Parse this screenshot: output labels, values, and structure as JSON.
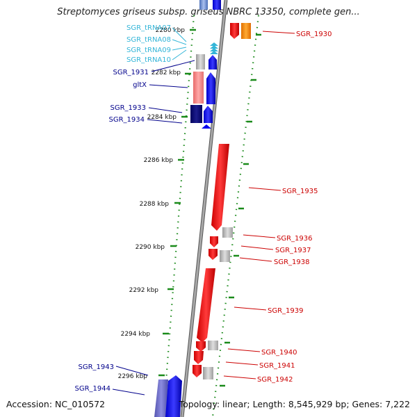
{
  "title": "Streptomyces griseus subsp. griseus NBRC 13350, complete gen...",
  "footer": {
    "accession": "Accession: NC_010572",
    "topology": "Topology: linear; Length: 8,545,929 bp; Genes: 7,222"
  },
  "ruler_ticks": [
    {
      "label": "2280 kbp",
      "kbp": 2280
    },
    {
      "label": "2282 kbp",
      "kbp": 2282
    },
    {
      "label": "2284 kbp",
      "kbp": 2284
    },
    {
      "label": "2286 kbp",
      "kbp": 2286
    },
    {
      "label": "2288 kbp",
      "kbp": 2288
    },
    {
      "label": "2290 kbp",
      "kbp": 2290
    },
    {
      "label": "2292 kbp",
      "kbp": 2292
    },
    {
      "label": "2294 kbp",
      "kbp": 2294
    },
    {
      "label": "2296 kbp",
      "kbp": 2296
    }
  ],
  "left_labels": [
    {
      "text": "SGR_tRNA07",
      "color": "#33b5d8"
    },
    {
      "text": "SGR_tRNA08",
      "color": "#33b5d8"
    },
    {
      "text": "SGR_tRNA09",
      "color": "#33b5d8"
    },
    {
      "text": "SGR_tRNA10",
      "color": "#33b5d8"
    },
    {
      "text": "SGR_1931",
      "color": "#00008b"
    },
    {
      "text": "gltX",
      "color": "#00008b"
    },
    {
      "text": "SGR_1933",
      "color": "#00008b"
    },
    {
      "text": "SGR_1934",
      "color": "#00008b"
    },
    {
      "text": "SGR_1943",
      "color": "#00008b"
    },
    {
      "text": "SGR_1944",
      "color": "#00008b"
    }
  ],
  "right_labels": [
    {
      "text": "SGR_1930",
      "color": "#cc0000"
    },
    {
      "text": "SGR_1935",
      "color": "#cc0000"
    },
    {
      "text": "SGR_1936",
      "color": "#cc0000"
    },
    {
      "text": "SGR_1937",
      "color": "#cc0000"
    },
    {
      "text": "SGR_1938",
      "color": "#cc0000"
    },
    {
      "text": "SGR_1939",
      "color": "#cc0000"
    },
    {
      "text": "SGR_1940",
      "color": "#cc0000"
    },
    {
      "text": "SGR_1941",
      "color": "#cc0000"
    },
    {
      "text": "SGR_1942",
      "color": "#cc0000"
    }
  ],
  "colors": {
    "forward_gene": "#0000ee",
    "reverse_gene": "#ee0000",
    "pseudo_gray": "#b8b8b8",
    "trna": "#33b5d8",
    "backbone": "#888888",
    "dotted_track": "#1a8a1a"
  }
}
